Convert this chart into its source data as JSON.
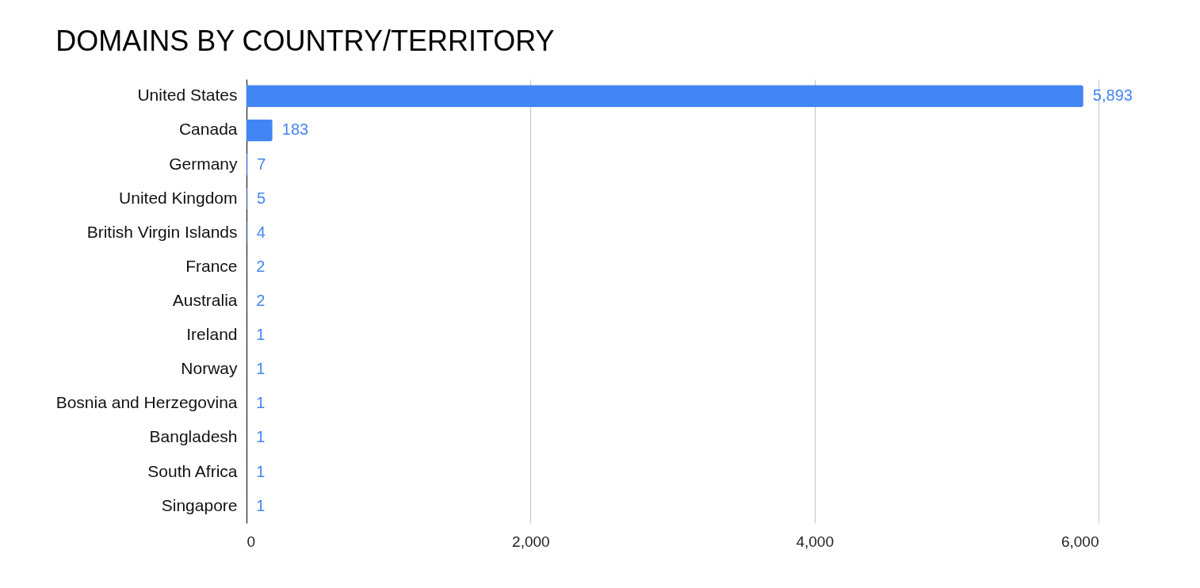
{
  "chart_data": {
    "type": "bar",
    "orientation": "horizontal",
    "title": "DOMAINS BY COUNTRY/TERRITORY",
    "categories": [
      "United States",
      "Canada",
      "Germany",
      "United Kingdom",
      "British Virgin Islands",
      "France",
      "Australia",
      "Ireland",
      "Norway",
      "Bosnia and Herzegovina",
      "Bangladesh",
      "South Africa",
      "Singapore"
    ],
    "values": [
      5893,
      183,
      7,
      5,
      4,
      2,
      2,
      1,
      1,
      1,
      1,
      1,
      1
    ],
    "value_labels": [
      "5,893",
      "183",
      "7",
      "5",
      "4",
      "2",
      "2",
      "1",
      "1",
      "1",
      "1",
      "1",
      "1"
    ],
    "color": "#4285f4",
    "xlim": [
      0,
      6000
    ],
    "xticks": [
      {
        "value": 0,
        "label": "0"
      },
      {
        "value": 2000,
        "label": "2,000"
      },
      {
        "value": 4000,
        "label": "4,000"
      },
      {
        "value": 6000,
        "label": "6,000"
      }
    ],
    "grid": "x"
  }
}
